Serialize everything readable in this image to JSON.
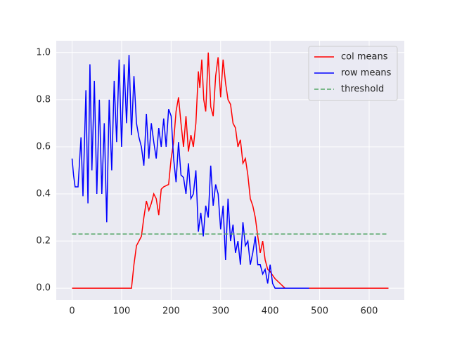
{
  "chart_data": {
    "type": "line",
    "xlim": [
      -32,
      671
    ],
    "ylim": [
      -0.05,
      1.05
    ],
    "xticks": [
      0,
      100,
      200,
      300,
      400,
      500,
      600
    ],
    "yticks": [
      {
        "value": 0,
        "label": "0.0"
      },
      {
        "value": 0.2,
        "label": "0.2"
      },
      {
        "value": 0.4,
        "label": "0.4"
      },
      {
        "value": 0.6,
        "label": "0.6"
      },
      {
        "value": 0.8,
        "label": "0.8"
      },
      {
        "value": 1,
        "label": "1.0"
      }
    ],
    "grid": true,
    "legend": "upper right",
    "series": [
      {
        "name": "col means",
        "color": "#ff0000",
        "dash": false,
        "x": [
          0,
          120,
          125,
          130,
          135,
          140,
          145,
          150,
          155,
          160,
          165,
          170,
          175,
          180,
          185,
          195,
          200,
          205,
          210,
          215,
          220,
          225,
          230,
          235,
          240,
          245,
          250,
          255,
          258,
          262,
          266,
          270,
          275,
          280,
          285,
          290,
          295,
          300,
          305,
          310,
          315,
          320,
          325,
          330,
          335,
          340,
          345,
          350,
          355,
          360,
          365,
          370,
          375,
          380,
          385,
          390,
          395,
          400,
          410,
          420,
          430,
          639
        ],
        "values": [
          0,
          0,
          0.1,
          0.18,
          0.2,
          0.22,
          0.3,
          0.37,
          0.33,
          0.36,
          0.4,
          0.38,
          0.31,
          0.42,
          0.43,
          0.44,
          0.55,
          0.62,
          0.75,
          0.81,
          0.7,
          0.6,
          0.73,
          0.58,
          0.65,
          0.6,
          0.7,
          0.92,
          0.85,
          0.97,
          0.8,
          0.75,
          1.0,
          0.77,
          0.73,
          0.9,
          0.98,
          0.81,
          0.97,
          0.87,
          0.8,
          0.78,
          0.7,
          0.68,
          0.6,
          0.63,
          0.53,
          0.55,
          0.48,
          0.38,
          0.35,
          0.3,
          0.22,
          0.15,
          0.2,
          0.12,
          0.08,
          0.07,
          0.04,
          0.02,
          0,
          0
        ]
      },
      {
        "name": "row means",
        "color": "#0000ff",
        "dash": false,
        "x": [
          0,
          3,
          6,
          12,
          18,
          22,
          28,
          32,
          36,
          40,
          45,
          50,
          55,
          60,
          65,
          70,
          75,
          80,
          85,
          90,
          95,
          100,
          105,
          110,
          115,
          120,
          125,
          130,
          135,
          140,
          145,
          150,
          155,
          160,
          165,
          170,
          175,
          180,
          185,
          190,
          195,
          200,
          205,
          210,
          215,
          220,
          225,
          230,
          235,
          240,
          245,
          250,
          255,
          260,
          265,
          270,
          275,
          280,
          285,
          290,
          295,
          300,
          305,
          310,
          315,
          320,
          325,
          330,
          335,
          340,
          345,
          350,
          355,
          360,
          365,
          370,
          375,
          380,
          385,
          390,
          395,
          400,
          405,
          410,
          479
        ],
        "values": [
          0.55,
          0.48,
          0.43,
          0.43,
          0.64,
          0.39,
          0.84,
          0.36,
          0.95,
          0.5,
          0.88,
          0.4,
          0.8,
          0.4,
          0.7,
          0.28,
          0.8,
          0.5,
          0.88,
          0.62,
          0.97,
          0.6,
          0.95,
          0.7,
          0.99,
          0.65,
          0.9,
          0.7,
          0.64,
          0.6,
          0.52,
          0.74,
          0.55,
          0.7,
          0.62,
          0.55,
          0.68,
          0.6,
          0.72,
          0.6,
          0.76,
          0.73,
          0.55,
          0.45,
          0.62,
          0.48,
          0.47,
          0.4,
          0.53,
          0.38,
          0.4,
          0.5,
          0.24,
          0.32,
          0.22,
          0.35,
          0.3,
          0.52,
          0.35,
          0.44,
          0.4,
          0.25,
          0.35,
          0.12,
          0.38,
          0.2,
          0.27,
          0.15,
          0.2,
          0.1,
          0.28,
          0.18,
          0.2,
          0.1,
          0.15,
          0.22,
          0.1,
          0.1,
          0.06,
          0.08,
          0.02,
          0.1,
          0.02,
          0,
          0
        ]
      },
      {
        "name": "threshold",
        "color": "#55a868",
        "dash": true,
        "x": [
          0,
          639
        ],
        "values": [
          0.23,
          0.23
        ]
      }
    ]
  }
}
